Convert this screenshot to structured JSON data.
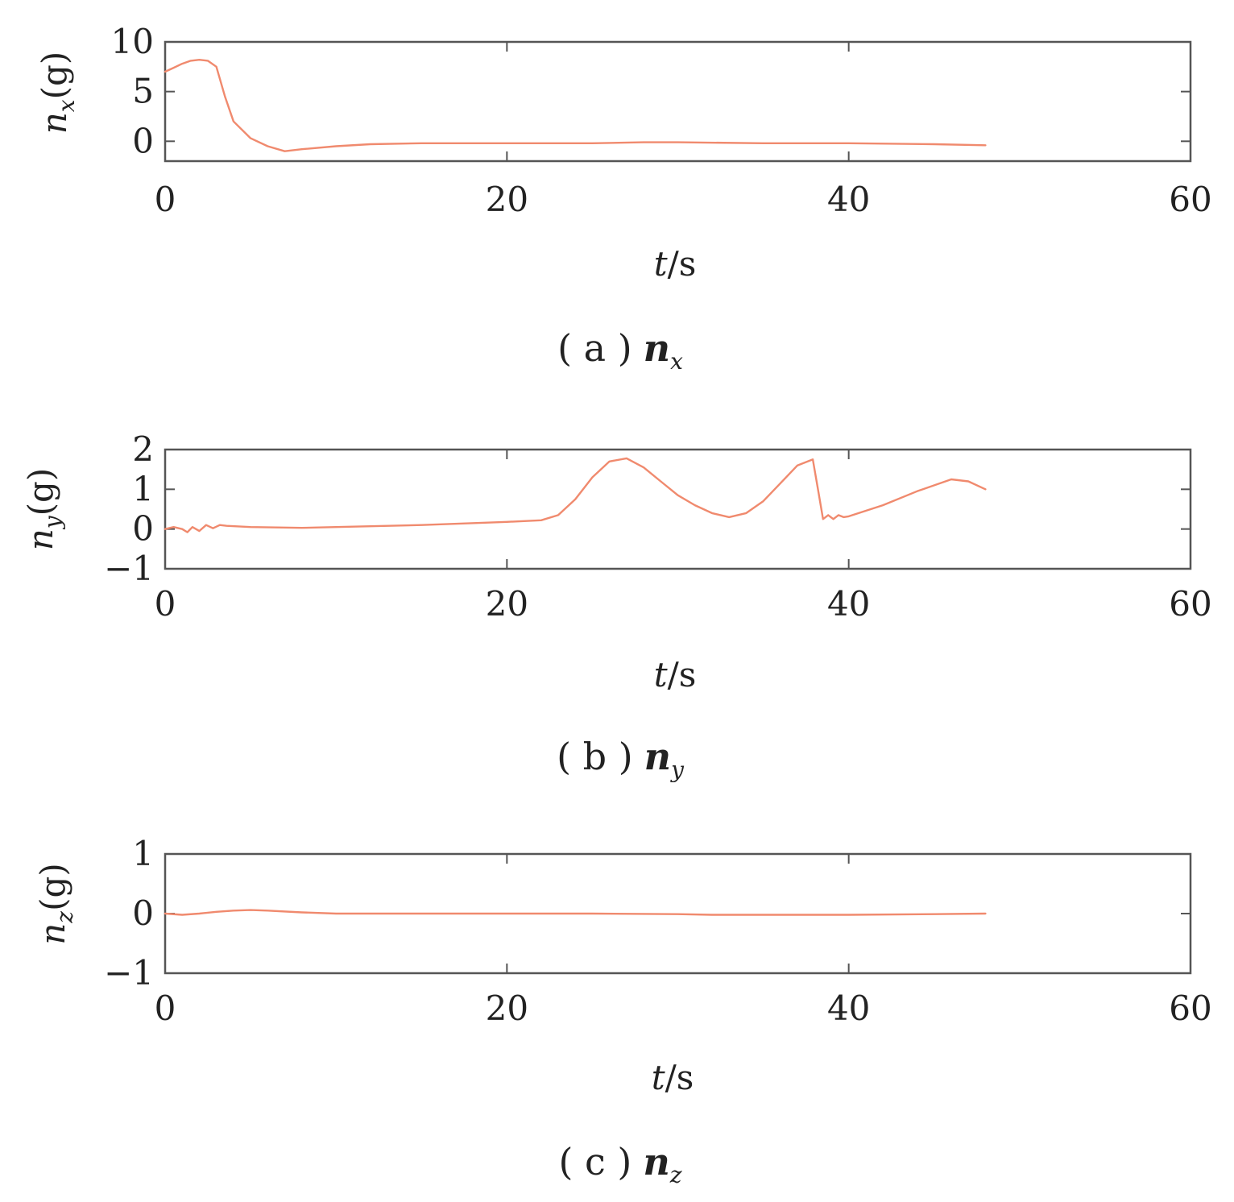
{
  "colors": {
    "series": "#f08a6e",
    "axis": "#555555",
    "text": "#222222"
  },
  "chart_data": [
    {
      "type": "line",
      "ylabel": {
        "var": "n",
        "sub": "x",
        "unit": "(g)"
      },
      "xlabel": {
        "var": "t",
        "unit": "/s"
      },
      "caption": {
        "letter": "( a )",
        "var": "n",
        "sub": "x"
      },
      "xlim": [
        0,
        60
      ],
      "ylim": [
        -2,
        10
      ],
      "xticks": [
        "0",
        "20",
        "40",
        "60"
      ],
      "yticks": [
        "10",
        "5",
        "0"
      ],
      "grid": false,
      "series": [
        {
          "x": [
            0,
            0.5,
            1,
            1.5,
            2,
            2.5,
            3,
            3.5,
            4,
            5,
            6,
            7,
            8,
            10,
            12,
            15,
            20,
            25,
            28,
            30,
            35,
            40,
            45,
            48
          ],
          "y": [
            7.0,
            7.4,
            7.8,
            8.1,
            8.2,
            8.1,
            7.5,
            4.5,
            2.0,
            0.3,
            -0.5,
            -1.0,
            -0.8,
            -0.5,
            -0.3,
            -0.2,
            -0.2,
            -0.2,
            -0.1,
            -0.1,
            -0.2,
            -0.2,
            -0.3,
            -0.4
          ]
        }
      ]
    },
    {
      "type": "line",
      "ylabel": {
        "var": "n",
        "sub": "y",
        "unit": "(g)"
      },
      "xlabel": {
        "var": "t",
        "unit": "/s"
      },
      "caption": {
        "letter": "( b )",
        "var": "n",
        "sub": "y"
      },
      "xlim": [
        0,
        60
      ],
      "ylim": [
        -1,
        2
      ],
      "xticks": [
        "0",
        "20",
        "40",
        "60"
      ],
      "yticks": [
        "2",
        "1",
        "0",
        "−1"
      ],
      "grid": false,
      "series": [
        {
          "x": [
            0,
            0.5,
            1,
            1.3,
            1.6,
            2,
            2.4,
            2.8,
            3.2,
            3.6,
            5,
            8,
            10,
            15,
            20,
            22,
            23,
            24,
            25,
            26,
            27,
            28,
            29,
            30,
            31,
            32,
            33,
            34,
            35,
            36,
            37,
            37.9,
            38.2,
            38.5,
            38.8,
            39.1,
            39.4,
            39.7,
            40,
            42,
            44,
            46,
            47,
            48
          ],
          "y": [
            0.0,
            0.05,
            0.0,
            -0.08,
            0.05,
            -0.05,
            0.1,
            0.02,
            0.1,
            0.08,
            0.05,
            0.03,
            0.05,
            0.1,
            0.18,
            0.22,
            0.35,
            0.75,
            1.3,
            1.7,
            1.78,
            1.55,
            1.2,
            0.85,
            0.6,
            0.4,
            0.3,
            0.4,
            0.7,
            1.15,
            1.6,
            1.75,
            1.0,
            0.25,
            0.35,
            0.25,
            0.35,
            0.3,
            0.32,
            0.6,
            0.95,
            1.25,
            1.2,
            1.0
          ]
        }
      ]
    },
    {
      "type": "line",
      "ylabel": {
        "var": "n",
        "sub": "z",
        "unit": "(g)"
      },
      "xlabel": {
        "var": "t",
        "unit": "/s"
      },
      "caption": {
        "letter": "( c )",
        "var": "n",
        "sub": "z"
      },
      "xlim": [
        0,
        60
      ],
      "ylim": [
        -1,
        1
      ],
      "xticks": [
        "0",
        "20",
        "40",
        "60"
      ],
      "yticks": [
        "1",
        "0",
        "−1"
      ],
      "grid": false,
      "series": [
        {
          "x": [
            0,
            1,
            2,
            3,
            4,
            5,
            6,
            8,
            10,
            15,
            20,
            25,
            30,
            32,
            35,
            40,
            45,
            48
          ],
          "y": [
            0.0,
            -0.02,
            0.0,
            0.03,
            0.05,
            0.06,
            0.05,
            0.02,
            0.0,
            0.0,
            0.0,
            0.0,
            -0.01,
            -0.02,
            -0.02,
            -0.02,
            -0.01,
            0.0
          ]
        }
      ]
    }
  ]
}
